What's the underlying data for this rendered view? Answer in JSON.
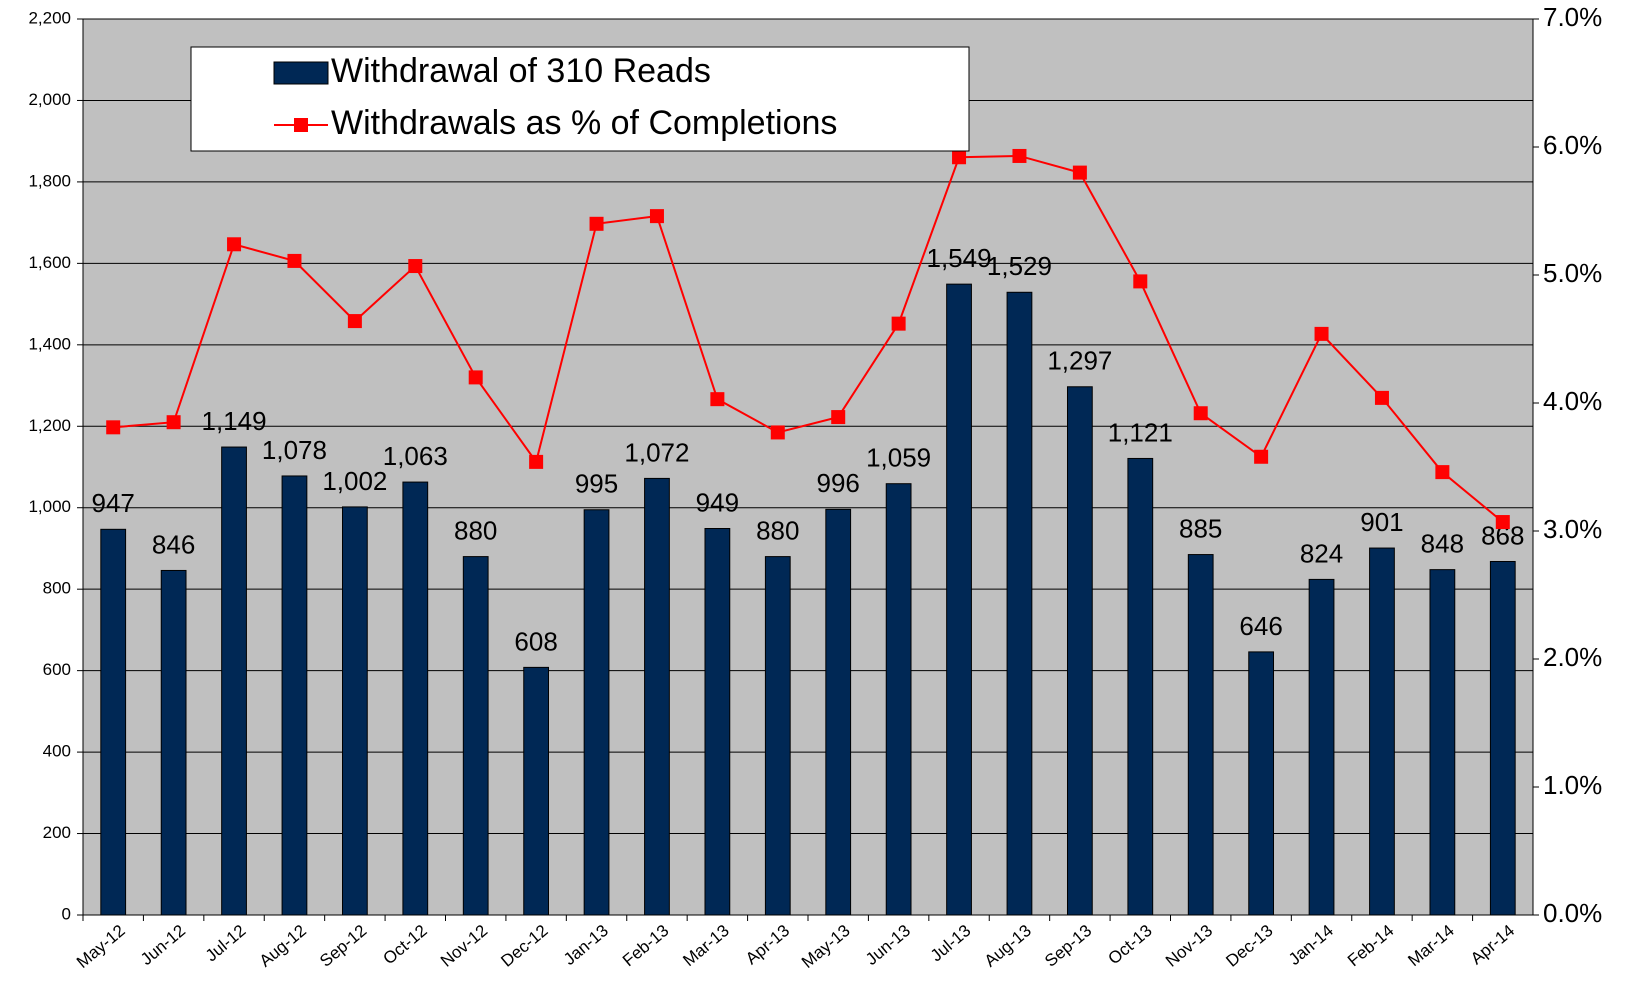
{
  "chart_data": {
    "type": "bar",
    "categories": [
      "May-12",
      "Jun-12",
      "Jul-12",
      "Aug-12",
      "Sep-12",
      "Oct-12",
      "Nov-12",
      "Dec-12",
      "Jan-13",
      "Feb-13",
      "Mar-13",
      "Apr-13",
      "May-13",
      "Jun-13",
      "Jul-13",
      "Aug-13",
      "Sep-13",
      "Oct-13",
      "Nov-13",
      "Dec-13",
      "Jan-14",
      "Feb-14",
      "Mar-14",
      "Apr-14"
    ],
    "series": [
      {
        "name": "Withdrawal of 310 Reads",
        "type": "bar",
        "color": "#002855",
        "values": [
          947,
          846,
          1149,
          1078,
          1002,
          1063,
          880,
          608,
          995,
          1072,
          949,
          880,
          996,
          1059,
          1549,
          1529,
          1297,
          1121,
          885,
          646,
          824,
          901,
          848,
          868
        ],
        "value_labels": [
          "947",
          "846",
          "1,149",
          "1,078",
          "1,002",
          "1,063",
          "880",
          "608",
          "995",
          "1,072",
          "949",
          "880",
          "996",
          "1,059",
          "1,549",
          "1,529",
          "1,297",
          "1,121",
          "885",
          "646",
          "824",
          "901",
          "848",
          "868"
        ]
      },
      {
        "name": "Withdrawals as % of Completions",
        "type": "line",
        "color": "#ff0000",
        "axis": "y2",
        "values": [
          3.81,
          3.85,
          5.24,
          5.11,
          4.64,
          5.07,
          4.2,
          3.54,
          5.4,
          5.46,
          4.03,
          3.77,
          3.89,
          4.62,
          5.92,
          5.93,
          5.8,
          4.95,
          3.92,
          3.58,
          4.54,
          4.04,
          3.46,
          3.07
        ]
      }
    ],
    "ylim": [
      0,
      2200
    ],
    "yticks": [
      0,
      200,
      400,
      600,
      800,
      {
        "value": 1000,
        "label": "1,000"
      },
      {
        "value": 1200,
        "label": "1,200"
      },
      {
        "value": 1400,
        "label": "1,400"
      },
      {
        "value": 1600,
        "label": "1,600"
      },
      {
        "value": 1800,
        "label": "1,800"
      },
      {
        "value": 2000,
        "label": "2,000"
      },
      {
        "value": 2200,
        "label": "2,200"
      }
    ],
    "y2lim": [
      0,
      7
    ],
    "y2ticks": [
      {
        "value": 0,
        "label": "0.0%"
      },
      {
        "value": 1,
        "label": "1.0%"
      },
      {
        "value": 2,
        "label": "2.0%"
      },
      {
        "value": 3,
        "label": "3.0%"
      },
      {
        "value": 4,
        "label": "4.0%"
      },
      {
        "value": 5,
        "label": "5.0%"
      },
      {
        "value": 6,
        "label": "6.0%"
      },
      {
        "value": 7,
        "label": "7.0%"
      }
    ],
    "grid": true,
    "legend": "upper left"
  }
}
